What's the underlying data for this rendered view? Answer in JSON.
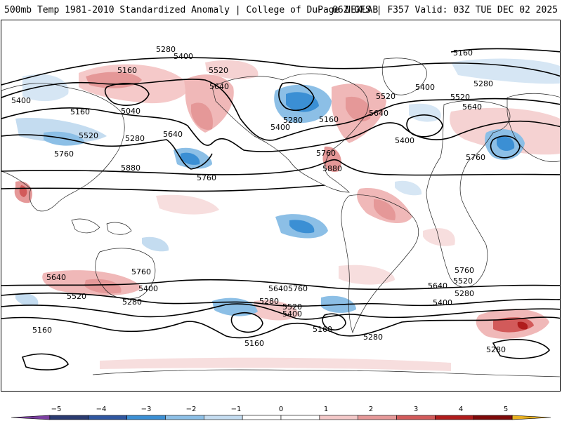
{
  "header": {
    "left_title": "500mb Temp 1981-2010 Standardized Anomaly | College of DuPage NEXLAB",
    "right_title": "06Z GFS | F357 Valid: 03Z TUE DEC 02 2025"
  },
  "map": {
    "projection": "global cylindrical equidistant",
    "field": "500mb temperature standardized anomaly (shaded) with 500mb height contours (dam)",
    "contour_labels": [
      "5280",
      "5400",
      "5160",
      "5520",
      "5640",
      "5040",
      "5400",
      "5160",
      "5520",
      "5280",
      "5640",
      "5760",
      "5880",
      "5760",
      "5280",
      "5400",
      "5160",
      "5520",
      "5640",
      "5760",
      "5880",
      "5400",
      "5160",
      "5520",
      "5640",
      "5400",
      "5760",
      "5280",
      "5160",
      "5640",
      "5760",
      "5520",
      "5400",
      "5280",
      "5160",
      "5640",
      "5760",
      "5520",
      "5400",
      "5280",
      "5160",
      "5280",
      "5640",
      "5760",
      "5520",
      "5400",
      "5280",
      "5160",
      "5280",
      "5760",
      "5640",
      "5520",
      "5400",
      "5280",
      "5280"
    ]
  },
  "colorbar": {
    "ticks": [
      "−5",
      "−4",
      "−3",
      "−2",
      "−1",
      "0",
      "1",
      "2",
      "3",
      "4",
      "5"
    ],
    "tick_values": [
      -5,
      -4,
      -3,
      -2,
      -1,
      0,
      1,
      2,
      3,
      4,
      5
    ],
    "range": [
      -6,
      6
    ],
    "colors": [
      "#7b3fa0",
      "#2a3a70",
      "#2f56a0",
      "#3b8fd4",
      "#8cbfe6",
      "#c4dcf0",
      "#ffffff",
      "#ffffff",
      "#f3c8c8",
      "#e59898",
      "#d25a5a",
      "#b01c1c",
      "#7e0a0a",
      "#e8b020"
    ]
  }
}
